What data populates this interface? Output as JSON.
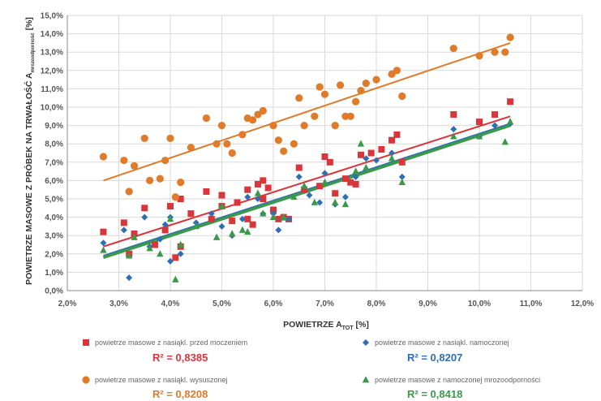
{
  "chart_data": {
    "type": "scatter",
    "title": "",
    "xlabel": "POWIETRZE A",
    "xlabel_sub": "TOT",
    "xlabel_unit": "[%]",
    "ylabel": "POWIETRZE MASOWE Z PRÓBEK NA TRWAŁOŚĆ A",
    "ylabel_sub": "mrozoodporność",
    "ylabel_unit": "[%]",
    "xlim": [
      2.0,
      12.0
    ],
    "ylim": [
      0.0,
      15.0
    ],
    "x_ticks": [
      "2,0%",
      "3,0%",
      "4,0%",
      "5,0%",
      "6,0%",
      "7,0%",
      "8,0%",
      "9,0%",
      "10,0%",
      "11,0%",
      "12,0%"
    ],
    "y_ticks": [
      "0,0%",
      "1,0%",
      "2,0%",
      "3,0%",
      "4,0%",
      "5,0%",
      "6,0%",
      "7,0%",
      "8,0%",
      "9,0%",
      "10,0%",
      "11,0%",
      "12,0%",
      "13,0%",
      "14,0%",
      "15,0%"
    ],
    "grid": true,
    "legend_position": "bottom",
    "series": [
      {
        "name": "powietrze masowe z nasiąkl. przed moczeniem",
        "marker": "square",
        "color": "#d9353b",
        "r2": "R² = 0,8385",
        "trend": [
          [
            2.7,
            2.4
          ],
          [
            10.6,
            9.5
          ]
        ],
        "points": [
          [
            2.7,
            3.2
          ],
          [
            3.1,
            3.7
          ],
          [
            3.2,
            2.0
          ],
          [
            3.3,
            3.1
          ],
          [
            3.5,
            4.5
          ],
          [
            3.7,
            2.5
          ],
          [
            3.9,
            3.3
          ],
          [
            4.0,
            4.6
          ],
          [
            4.1,
            1.8
          ],
          [
            4.2,
            2.4
          ],
          [
            4.2,
            5.0
          ],
          [
            4.4,
            4.2
          ],
          [
            4.7,
            5.4
          ],
          [
            4.8,
            3.9
          ],
          [
            5.0,
            4.6
          ],
          [
            5.0,
            5.2
          ],
          [
            5.2,
            3.8
          ],
          [
            5.3,
            4.8
          ],
          [
            5.5,
            3.9
          ],
          [
            5.5,
            5.5
          ],
          [
            5.6,
            3.6
          ],
          [
            5.7,
            5.8
          ],
          [
            5.8,
            6.0
          ],
          [
            5.8,
            5.0
          ],
          [
            5.9,
            5.6
          ],
          [
            6.0,
            4.4
          ],
          [
            6.1,
            3.9
          ],
          [
            6.2,
            4.0
          ],
          [
            6.3,
            3.9
          ],
          [
            6.5,
            6.7
          ],
          [
            6.6,
            5.5
          ],
          [
            6.9,
            5.7
          ],
          [
            7.0,
            7.3
          ],
          [
            7.1,
            7.0
          ],
          [
            7.2,
            5.3
          ],
          [
            7.4,
            6.1
          ],
          [
            7.5,
            5.9
          ],
          [
            7.6,
            5.8
          ],
          [
            7.7,
            7.4
          ],
          [
            7.9,
            7.5
          ],
          [
            8.1,
            7.7
          ],
          [
            8.3,
            8.2
          ],
          [
            8.4,
            8.5
          ],
          [
            8.5,
            7.0
          ],
          [
            9.5,
            9.6
          ],
          [
            10.0,
            9.2
          ],
          [
            10.3,
            9.6
          ],
          [
            10.6,
            10.3
          ]
        ]
      },
      {
        "name": "powietrze masowe z nasiąkl. namoczonej",
        "marker": "diamond",
        "color": "#2e6fb3",
        "r2": "R² = 0,8207",
        "trend": [
          [
            2.7,
            1.9
          ],
          [
            10.6,
            9.1
          ]
        ],
        "points": [
          [
            2.7,
            2.6
          ],
          [
            3.1,
            3.3
          ],
          [
            3.2,
            0.7
          ],
          [
            3.5,
            4.0
          ],
          [
            3.6,
            2.4
          ],
          [
            3.8,
            2.8
          ],
          [
            3.9,
            3.6
          ],
          [
            4.0,
            1.6
          ],
          [
            4.0,
            4.0
          ],
          [
            4.2,
            2.0
          ],
          [
            4.5,
            3.7
          ],
          [
            4.8,
            4.2
          ],
          [
            5.0,
            3.5
          ],
          [
            5.2,
            3.0
          ],
          [
            5.4,
            3.9
          ],
          [
            5.5,
            5.1
          ],
          [
            5.7,
            5.0
          ],
          [
            5.8,
            4.2
          ],
          [
            6.0,
            4.2
          ],
          [
            6.1,
            3.3
          ],
          [
            6.3,
            3.9
          ],
          [
            6.5,
            6.2
          ],
          [
            6.7,
            5.2
          ],
          [
            6.9,
            4.8
          ],
          [
            7.0,
            6.4
          ],
          [
            7.2,
            4.7
          ],
          [
            7.4,
            5.1
          ],
          [
            7.6,
            6.2
          ],
          [
            7.8,
            7.2
          ],
          [
            8.0,
            7.1
          ],
          [
            8.3,
            7.5
          ],
          [
            8.5,
            6.2
          ],
          [
            9.5,
            8.8
          ],
          [
            10.0,
            8.4
          ],
          [
            10.3,
            9.0
          ],
          [
            10.6,
            9.1
          ]
        ]
      },
      {
        "name": "powietrze masowe z nasiąkl. wysuszonej",
        "marker": "circle",
        "color": "#e07b2a",
        "r2": "R² = 0,8208",
        "trend": [
          [
            2.7,
            6.0
          ],
          [
            10.6,
            13.5
          ]
        ],
        "points": [
          [
            2.7,
            7.3
          ],
          [
            3.1,
            7.1
          ],
          [
            3.2,
            5.4
          ],
          [
            3.3,
            6.8
          ],
          [
            3.5,
            8.3
          ],
          [
            3.6,
            6.0
          ],
          [
            3.8,
            6.1
          ],
          [
            3.9,
            7.1
          ],
          [
            4.0,
            8.3
          ],
          [
            4.1,
            5.1
          ],
          [
            4.2,
            5.9
          ],
          [
            4.4,
            7.8
          ],
          [
            4.7,
            9.4
          ],
          [
            4.9,
            8.0
          ],
          [
            5.0,
            9.0
          ],
          [
            5.1,
            8.0
          ],
          [
            5.2,
            7.5
          ],
          [
            5.4,
            8.5
          ],
          [
            5.5,
            9.4
          ],
          [
            5.6,
            9.3
          ],
          [
            5.7,
            9.6
          ],
          [
            5.8,
            9.8
          ],
          [
            6.0,
            9.0
          ],
          [
            6.1,
            8.2
          ],
          [
            6.2,
            7.6
          ],
          [
            6.4,
            8.0
          ],
          [
            6.5,
            10.5
          ],
          [
            6.6,
            9.0
          ],
          [
            6.8,
            9.5
          ],
          [
            6.9,
            11.1
          ],
          [
            7.0,
            10.7
          ],
          [
            7.2,
            9.0
          ],
          [
            7.3,
            11.2
          ],
          [
            7.4,
            9.5
          ],
          [
            7.5,
            9.5
          ],
          [
            7.6,
            10.3
          ],
          [
            7.7,
            10.9
          ],
          [
            7.8,
            11.3
          ],
          [
            8.0,
            11.5
          ],
          [
            8.3,
            11.8
          ],
          [
            8.4,
            12.0
          ],
          [
            8.5,
            10.6
          ],
          [
            9.5,
            13.2
          ],
          [
            10.0,
            12.8
          ],
          [
            10.3,
            13.0
          ],
          [
            10.5,
            13.0
          ],
          [
            10.6,
            13.8
          ]
        ]
      },
      {
        "name": "powietrze masowe z namoczonej mrozoodporności",
        "marker": "triangle",
        "color": "#3a9a4a",
        "r2": "R² = 0,8418",
        "trend": [
          [
            2.7,
            1.8
          ],
          [
            10.6,
            9.0
          ]
        ],
        "points": [
          [
            2.7,
            2.2
          ],
          [
            3.2,
            1.9
          ],
          [
            3.3,
            2.9
          ],
          [
            3.6,
            2.3
          ],
          [
            3.8,
            2.0
          ],
          [
            4.0,
            3.9
          ],
          [
            4.1,
            0.6
          ],
          [
            4.2,
            2.5
          ],
          [
            4.5,
            3.5
          ],
          [
            4.9,
            2.9
          ],
          [
            5.0,
            4.6
          ],
          [
            5.2,
            3.1
          ],
          [
            5.4,
            3.3
          ],
          [
            5.5,
            3.2
          ],
          [
            5.7,
            5.3
          ],
          [
            5.8,
            4.2
          ],
          [
            6.0,
            4.0
          ],
          [
            6.2,
            4.0
          ],
          [
            6.4,
            5.1
          ],
          [
            6.6,
            5.7
          ],
          [
            6.8,
            4.8
          ],
          [
            7.0,
            5.9
          ],
          [
            7.2,
            4.8
          ],
          [
            7.4,
            4.7
          ],
          [
            7.6,
            6.5
          ],
          [
            7.7,
            8.0
          ],
          [
            7.8,
            6.7
          ],
          [
            8.3,
            7.2
          ],
          [
            8.5,
            5.9
          ],
          [
            9.5,
            8.4
          ],
          [
            10.0,
            8.4
          ],
          [
            10.5,
            8.1
          ],
          [
            10.6,
            9.2
          ]
        ]
      }
    ]
  }
}
